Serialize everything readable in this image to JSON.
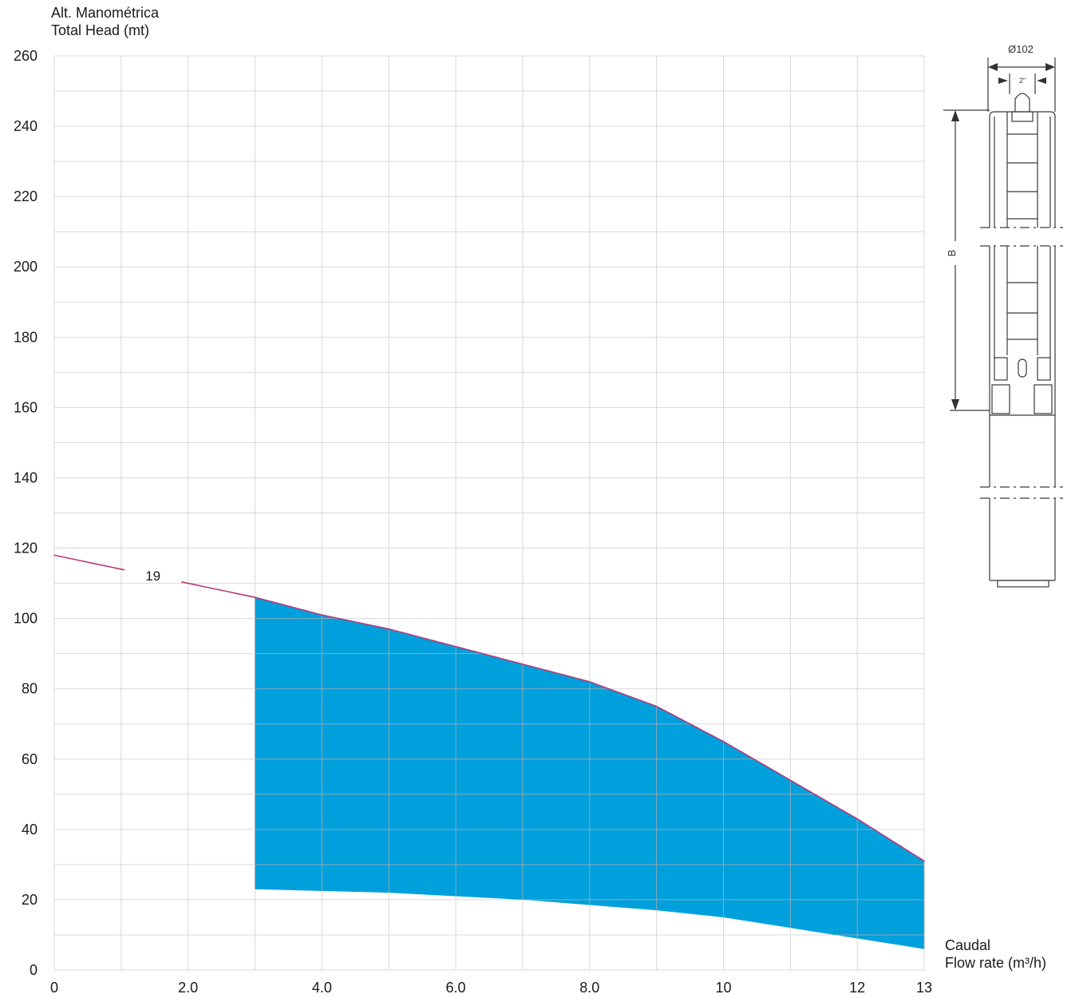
{
  "chart_data": {
    "type": "line",
    "ylabel_lines": [
      "Alt. Manométrica",
      "Total Head (mt)"
    ],
    "xlabel_lines": [
      "Caudal",
      "Flow rate (m³/h)"
    ],
    "xlim": [
      0,
      13
    ],
    "ylim": [
      0,
      260
    ],
    "x_major_ticks": [
      {
        "v": 0,
        "t": "0"
      },
      {
        "v": 2,
        "t": "2.0"
      },
      {
        "v": 4,
        "t": "4.0"
      },
      {
        "v": 6,
        "t": "6.0"
      },
      {
        "v": 8,
        "t": "8.0"
      },
      {
        "v": 10,
        "t": "10"
      },
      {
        "v": 12,
        "t": "12"
      },
      {
        "v": 13,
        "t": "13"
      }
    ],
    "x_grid_step": 1,
    "y_major_ticks": [
      0,
      20,
      40,
      60,
      80,
      100,
      120,
      140,
      160,
      180,
      200,
      220,
      240,
      260
    ],
    "y_grid_step": 10,
    "grid": true,
    "series": [
      {
        "name": "19",
        "color": "#b53a7c",
        "x": [
          0,
          1,
          2,
          3,
          4,
          5,
          6,
          7,
          8,
          9,
          10,
          11,
          12,
          13
        ],
        "y": [
          118,
          114,
          110,
          106,
          101,
          97,
          92,
          87,
          82,
          75,
          65,
          54,
          43,
          31
        ]
      }
    ],
    "operating_range": {
      "color": "#00a0dc",
      "x": [
        3,
        4,
        5,
        6,
        7,
        8,
        9,
        10,
        11,
        12,
        13
      ],
      "upper": [
        106,
        101,
        97,
        92,
        87,
        82,
        75,
        65,
        54,
        43,
        31
      ],
      "lower": [
        23,
        22.5,
        22,
        21,
        20,
        18.5,
        17,
        15,
        12,
        9,
        6
      ]
    }
  },
  "pump_drawing": {
    "diameter_label": "Ø102",
    "outlet_label": "2\"",
    "length_label": "B"
  }
}
